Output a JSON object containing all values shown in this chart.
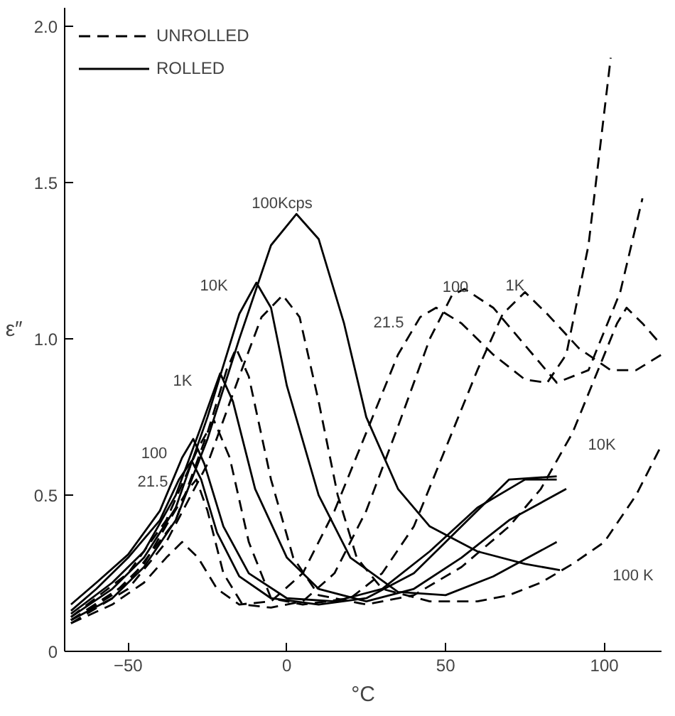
{
  "chart_data": {
    "type": "line",
    "xlabel": "°C",
    "ylabel": "ε″",
    "xlim": [
      -70,
      118
    ],
    "ylim": [
      0,
      2.06
    ],
    "xticks": [
      -50,
      0,
      50,
      100
    ],
    "yticks": [
      0,
      0.5,
      {
        "value": 1.0,
        "label": "1.0"
      },
      1.5,
      {
        "value": 2.0,
        "label": "2.0"
      }
    ],
    "grid": false,
    "legend": "top left",
    "marker": "none",
    "series": [
      {
        "name": "UNROLLED",
        "color": "#000000",
        "line_style": "dashed",
        "x": [
          -68,
          -55,
          -45,
          -38,
          -33,
          -28,
          -22,
          -15,
          -5,
          5,
          15,
          25,
          35,
          42,
          47,
          55,
          65,
          75,
          82,
          88,
          95,
          102
        ],
        "values": [
          0.09,
          0.15,
          0.22,
          0.3,
          0.35,
          0.3,
          0.2,
          0.15,
          0.16,
          0.25,
          0.45,
          0.7,
          0.95,
          1.07,
          1.1,
          1.05,
          0.95,
          0.87,
          0.86,
          0.95,
          1.3,
          1.9
        ]
      },
      {
        "color": "#000000",
        "line_style": "dashed",
        "x": [
          -68,
          -55,
          -45,
          -37,
          -31,
          -28.5,
          -25,
          -20,
          -14,
          -5,
          5,
          15,
          25,
          35,
          45,
          52,
          56,
          65,
          75,
          85,
          95,
          105,
          112
        ],
        "values": [
          0.1,
          0.18,
          0.28,
          0.42,
          0.52,
          0.55,
          0.45,
          0.25,
          0.15,
          0.14,
          0.16,
          0.25,
          0.45,
          0.72,
          1.0,
          1.14,
          1.16,
          1.1,
          0.98,
          0.86,
          0.9,
          1.15,
          1.45
        ]
      },
      {
        "color": "#000000",
        "line_style": "dashed",
        "x": [
          -68,
          -50,
          -38,
          -28,
          -23,
          -18,
          -12,
          -5,
          5,
          20,
          30,
          40,
          50,
          60,
          68,
          75,
          82,
          92,
          102,
          110,
          118
        ],
        "values": [
          0.11,
          0.25,
          0.42,
          0.65,
          0.74,
          0.62,
          0.35,
          0.17,
          0.15,
          0.17,
          0.25,
          0.4,
          0.65,
          0.9,
          1.08,
          1.15,
          1.08,
          0.97,
          0.9,
          0.9,
          0.95
        ]
      },
      {
        "color": "#000000",
        "line_style": "dashed",
        "x": [
          -68,
          -50,
          -35,
          -25,
          -19,
          -16,
          -12,
          -5,
          2,
          10,
          25,
          40,
          55,
          70,
          80,
          90,
          98,
          104,
          107,
          112,
          118
        ],
        "values": [
          0.1,
          0.22,
          0.42,
          0.7,
          0.9,
          0.97,
          0.88,
          0.55,
          0.3,
          0.18,
          0.15,
          0.18,
          0.27,
          0.4,
          0.52,
          0.7,
          0.9,
          1.05,
          1.1,
          1.05,
          0.98
        ]
      },
      {
        "color": "#000000",
        "line_style": "dashed",
        "x": [
          -68,
          -50,
          -38,
          -25,
          -15,
          -8,
          -1.3,
          4,
          10,
          16,
          22,
          30,
          45,
          60,
          70,
          80,
          90,
          100,
          110,
          118
        ],
        "values": [
          0.09,
          0.2,
          0.35,
          0.6,
          0.88,
          1.07,
          1.14,
          1.07,
          0.8,
          0.5,
          0.3,
          0.2,
          0.16,
          0.16,
          0.18,
          0.22,
          0.28,
          0.35,
          0.5,
          0.66
        ]
      },
      {
        "name": "ROLLED",
        "color": "#000000",
        "line_style": "solid",
        "x": [
          -68,
          -60,
          -50,
          -40,
          -34,
          -30,
          -27,
          -22,
          -15,
          -5,
          10,
          25,
          40,
          55,
          70,
          85
        ],
        "values": [
          0.13,
          0.2,
          0.3,
          0.42,
          0.55,
          0.61,
          0.55,
          0.38,
          0.24,
          0.17,
          0.15,
          0.17,
          0.25,
          0.4,
          0.55,
          0.56
        ]
      },
      {
        "color": "#000000",
        "line_style": "solid",
        "x": [
          -68,
          -60,
          -50,
          -40,
          -33,
          -29.5,
          -26,
          -20,
          -12,
          0,
          15,
          30,
          45,
          60,
          75,
          85
        ],
        "values": [
          0.15,
          0.22,
          0.31,
          0.45,
          0.62,
          0.68,
          0.6,
          0.4,
          0.25,
          0.17,
          0.16,
          0.2,
          0.32,
          0.46,
          0.55,
          0.55
        ]
      },
      {
        "color": "#000000",
        "line_style": "solid",
        "x": [
          -68,
          -55,
          -45,
          -35,
          -27,
          -21,
          -17,
          -10,
          0,
          10,
          25,
          40,
          55,
          70,
          88
        ],
        "values": [
          0.12,
          0.22,
          0.32,
          0.5,
          0.72,
          0.89,
          0.8,
          0.52,
          0.3,
          0.2,
          0.16,
          0.2,
          0.3,
          0.42,
          0.52
        ]
      },
      {
        "color": "#000000",
        "line_style": "solid",
        "x": [
          -68,
          -55,
          -45,
          -35,
          -25,
          -15,
          -9.6,
          -5,
          0,
          10,
          20,
          35,
          50,
          65,
          85
        ],
        "values": [
          0.11,
          0.2,
          0.3,
          0.46,
          0.75,
          1.08,
          1.18,
          1.1,
          0.85,
          0.5,
          0.3,
          0.19,
          0.18,
          0.24,
          0.35
        ]
      },
      {
        "color": "#000000",
        "line_style": "solid",
        "x": [
          -68,
          -55,
          -45,
          -35,
          -25,
          -15,
          -5,
          3,
          10,
          18,
          25,
          35,
          45,
          60,
          75,
          86
        ],
        "values": [
          0.1,
          0.17,
          0.27,
          0.42,
          0.68,
          1.0,
          1.3,
          1.4,
          1.32,
          1.05,
          0.75,
          0.52,
          0.4,
          0.32,
          0.28,
          0.26
        ]
      }
    ],
    "annotations": [
      "100Kcps",
      "10K",
      "1K",
      "100",
      "21.5",
      "21.5",
      "100",
      "1K",
      "10K",
      "100 K"
    ]
  }
}
